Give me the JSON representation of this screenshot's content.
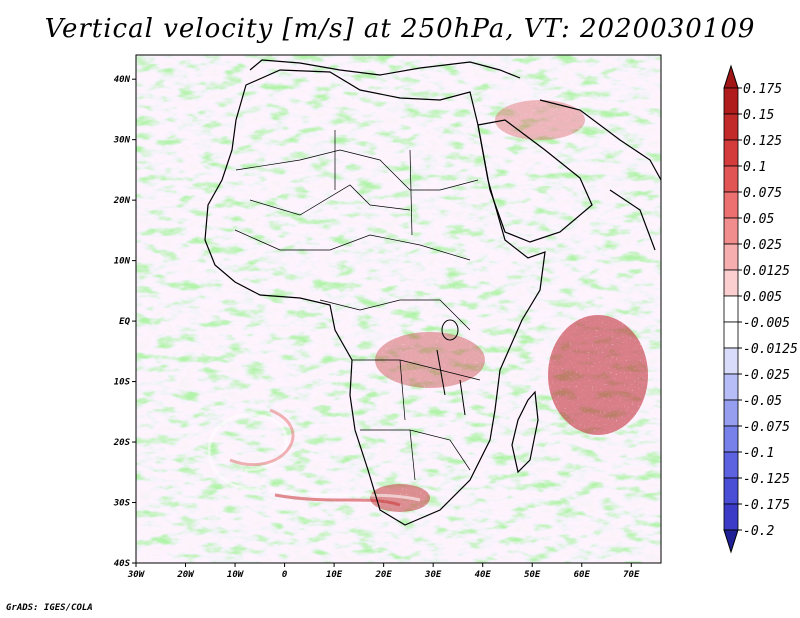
{
  "title": "Vertical velocity [m/s] at 250hPa, VT: 2020030109",
  "footer": "GrADS: IGES/COLA",
  "map": {
    "lon_range": [
      -30,
      76
    ],
    "lat_range": [
      -40,
      44
    ],
    "lon_ticks": [
      {
        "value": -30,
        "label": "30W"
      },
      {
        "value": -20,
        "label": "20W"
      },
      {
        "value": -10,
        "label": "10W"
      },
      {
        "value": 0,
        "label": "0"
      },
      {
        "value": 10,
        "label": "10E"
      },
      {
        "value": 20,
        "label": "20E"
      },
      {
        "value": 30,
        "label": "30E"
      },
      {
        "value": 40,
        "label": "40E"
      },
      {
        "value": 50,
        "label": "50E"
      },
      {
        "value": 60,
        "label": "60E"
      },
      {
        "value": 70,
        "label": "70E"
      }
    ],
    "lat_ticks": [
      {
        "value": 40,
        "label": "40N"
      },
      {
        "value": 30,
        "label": "30N"
      },
      {
        "value": 20,
        "label": "20N"
      },
      {
        "value": 10,
        "label": "10N"
      },
      {
        "value": 0,
        "label": "EQ"
      },
      {
        "value": -10,
        "label": "10S"
      },
      {
        "value": -20,
        "label": "20S"
      },
      {
        "value": -30,
        "label": "30S"
      },
      {
        "value": -40,
        "label": "40S"
      }
    ]
  },
  "colorbar": {
    "levels": [
      {
        "label": "0.175",
        "color": "#b01c1c"
      },
      {
        "label": "0.15",
        "color": "#c22a2a"
      },
      {
        "label": "0.125",
        "color": "#d43c3c"
      },
      {
        "label": "0.1",
        "color": "#e25555"
      },
      {
        "label": "0.075",
        "color": "#ec7070"
      },
      {
        "label": "0.05",
        "color": "#f28d8d"
      },
      {
        "label": "0.025",
        "color": "#f7aeae"
      },
      {
        "label": "0.0125",
        "color": "#fbcfcf"
      },
      {
        "label": "0.005",
        "color": "#ffffff"
      },
      {
        "label": "-0.005",
        "color": "#ffffff"
      },
      {
        "label": "-0.0125",
        "color": "#d9dcfb"
      },
      {
        "label": "-0.025",
        "color": "#b7bdf6"
      },
      {
        "label": "-0.05",
        "color": "#969ef0"
      },
      {
        "label": "-0.075",
        "color": "#7880ea"
      },
      {
        "label": "-0.1",
        "color": "#5c62e0"
      },
      {
        "label": "-0.125",
        "color": "#4a4ed6"
      },
      {
        "label": "-0.175",
        "color": "#3b3bc8"
      },
      {
        "label": "-0.2",
        "color": "#2b2ba8"
      }
    ],
    "top_color": "#a01515",
    "bottom_color": "#1f1f96"
  }
}
